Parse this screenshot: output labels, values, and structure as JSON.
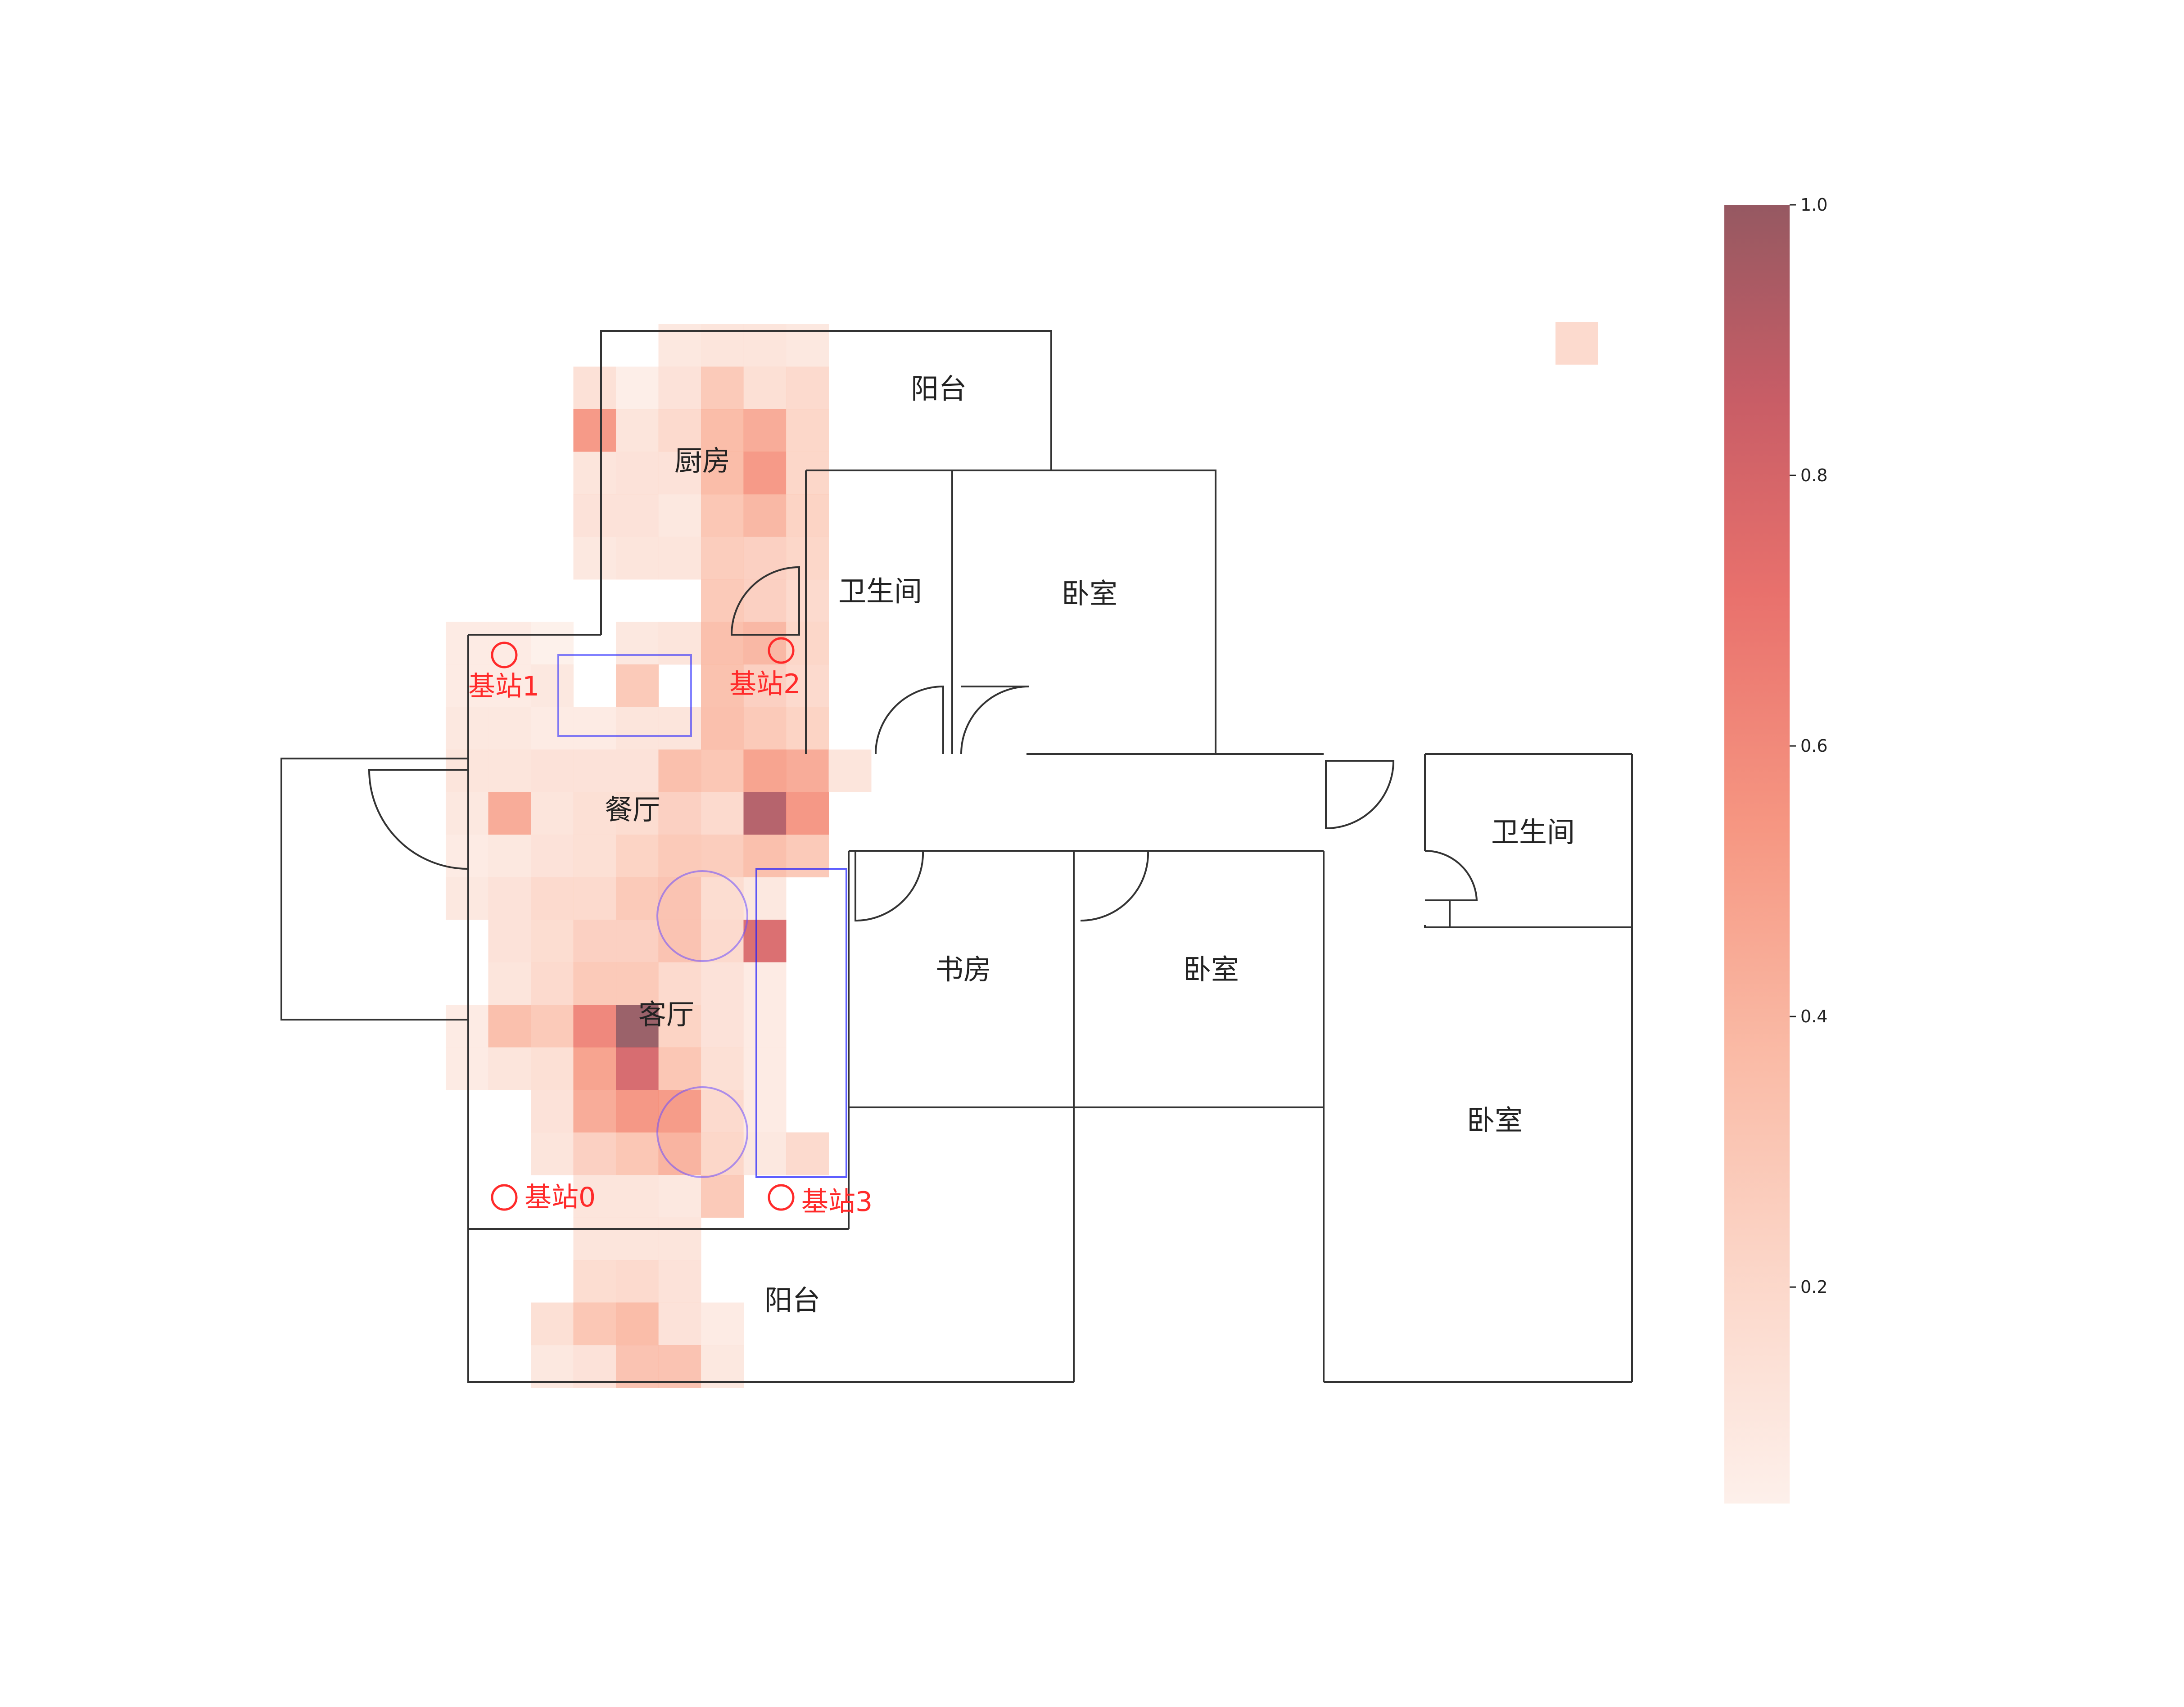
{
  "chart_data": {
    "type": "heatmap",
    "title": "",
    "value_range": [
      0.04,
      1.0
    ],
    "colormap": [
      "#fdeee8",
      "#fbd3c4",
      "#f9b29b",
      "#f58b74",
      "#e6615c",
      "#c24b55",
      "#8a4650"
    ],
    "colormap_stops": [
      0.0,
      0.17,
      0.35,
      0.52,
      0.7,
      0.85,
      1.0
    ],
    "colorbar": {
      "ticks": [
        0.2,
        0.4,
        0.6,
        0.8,
        1.0
      ],
      "tick_labels": [
        "0.2",
        "0.4",
        "0.6",
        "0.8",
        "1.0"
      ]
    },
    "rooms": [
      {
        "id": "balcony-top",
        "label": "阳台"
      },
      {
        "id": "kitchen",
        "label": "厨房"
      },
      {
        "id": "bathroom-1",
        "label": "卫生间"
      },
      {
        "id": "bedroom-1",
        "label": "卧室"
      },
      {
        "id": "dining",
        "label": "餐厅"
      },
      {
        "id": "bathroom-2",
        "label": "卫生间"
      },
      {
        "id": "study",
        "label": "书房"
      },
      {
        "id": "bedroom-2",
        "label": "卧室"
      },
      {
        "id": "living",
        "label": "客厅"
      },
      {
        "id": "bedroom-3",
        "label": "卧室"
      },
      {
        "id": "balcony-bottom",
        "label": "阳台"
      }
    ],
    "stations": [
      {
        "id": 0,
        "label": "基站0"
      },
      {
        "id": 1,
        "label": "基站1"
      },
      {
        "id": 2,
        "label": "基站2"
      },
      {
        "id": 3,
        "label": "基站3"
      }
    ],
    "cells": [
      {
        "col": 5,
        "row": 0,
        "v": 0.1
      },
      {
        "col": 6,
        "row": 0,
        "v": 0.12
      },
      {
        "col": 7,
        "row": 0,
        "v": 0.12
      },
      {
        "col": 8,
        "row": 0,
        "v": 0.1
      },
      {
        "col": 3,
        "row": 1,
        "v": 0.15
      },
      {
        "col": 4,
        "row": 1,
        "v": 0.06
      },
      {
        "col": 5,
        "row": 1,
        "v": 0.14
      },
      {
        "col": 6,
        "row": 1,
        "v": 0.3
      },
      {
        "col": 7,
        "row": 1,
        "v": 0.16
      },
      {
        "col": 8,
        "row": 1,
        "v": 0.2
      },
      {
        "col": 3,
        "row": 2,
        "v": 0.55
      },
      {
        "col": 4,
        "row": 2,
        "v": 0.12
      },
      {
        "col": 5,
        "row": 2,
        "v": 0.2
      },
      {
        "col": 6,
        "row": 2,
        "v": 0.38
      },
      {
        "col": 7,
        "row": 2,
        "v": 0.46
      },
      {
        "col": 8,
        "row": 2,
        "v": 0.22
      },
      {
        "col": 3,
        "row": 3,
        "v": 0.12
      },
      {
        "col": 4,
        "row": 3,
        "v": 0.14
      },
      {
        "col": 5,
        "row": 3,
        "v": 0.14
      },
      {
        "col": 6,
        "row": 3,
        "v": 0.38
      },
      {
        "col": 7,
        "row": 3,
        "v": 0.55
      },
      {
        "col": 8,
        "row": 3,
        "v": 0.22
      },
      {
        "col": 3,
        "row": 4,
        "v": 0.14
      },
      {
        "col": 4,
        "row": 4,
        "v": 0.14
      },
      {
        "col": 5,
        "row": 4,
        "v": 0.1
      },
      {
        "col": 6,
        "row": 4,
        "v": 0.32
      },
      {
        "col": 7,
        "row": 4,
        "v": 0.4
      },
      {
        "col": 8,
        "row": 4,
        "v": 0.24
      },
      {
        "col": 3,
        "row": 5,
        "v": 0.1
      },
      {
        "col": 4,
        "row": 5,
        "v": 0.12
      },
      {
        "col": 5,
        "row": 5,
        "v": 0.12
      },
      {
        "col": 6,
        "row": 5,
        "v": 0.28
      },
      {
        "col": 7,
        "row": 5,
        "v": 0.26
      },
      {
        "col": 8,
        "row": 5,
        "v": 0.22
      },
      {
        "col": 6,
        "row": 6,
        "v": 0.3
      },
      {
        "col": 7,
        "row": 6,
        "v": 0.26
      },
      {
        "col": 8,
        "row": 6,
        "v": 0.2
      },
      {
        "col": 0,
        "row": 7,
        "v": 0.08
      },
      {
        "col": 1,
        "row": 7,
        "v": 0.08
      },
      {
        "col": 2,
        "row": 7,
        "v": 0.04
      },
      {
        "col": 4,
        "row": 7,
        "v": 0.1
      },
      {
        "col": 5,
        "row": 7,
        "v": 0.12
      },
      {
        "col": 6,
        "row": 7,
        "v": 0.36
      },
      {
        "col": 7,
        "row": 7,
        "v": 0.4
      },
      {
        "col": 8,
        "row": 7,
        "v": 0.22
      },
      {
        "col": 0,
        "row": 8,
        "v": 0.08
      },
      {
        "col": 1,
        "row": 8,
        "v": 0.08
      },
      {
        "col": 2,
        "row": 8,
        "v": 0.1
      },
      {
        "col": 4,
        "row": 8,
        "v": 0.3
      },
      {
        "col": 6,
        "row": 8,
        "v": 0.35
      },
      {
        "col": 7,
        "row": 8,
        "v": 0.26
      },
      {
        "col": 8,
        "row": 8,
        "v": 0.2
      },
      {
        "col": 0,
        "row": 9,
        "v": 0.1
      },
      {
        "col": 1,
        "row": 9,
        "v": 0.1
      },
      {
        "col": 2,
        "row": 9,
        "v": 0.08
      },
      {
        "col": 3,
        "row": 9,
        "v": 0.08
      },
      {
        "col": 4,
        "row": 9,
        "v": 0.12
      },
      {
        "col": 5,
        "row": 9,
        "v": 0.12
      },
      {
        "col": 6,
        "row": 9,
        "v": 0.36
      },
      {
        "col": 7,
        "row": 9,
        "v": 0.3
      },
      {
        "col": 8,
        "row": 9,
        "v": 0.24
      },
      {
        "col": 0,
        "row": 10,
        "v": 0.12
      },
      {
        "col": 1,
        "row": 10,
        "v": 0.12
      },
      {
        "col": 2,
        "row": 10,
        "v": 0.14
      },
      {
        "col": 3,
        "row": 10,
        "v": 0.14
      },
      {
        "col": 4,
        "row": 10,
        "v": 0.14
      },
      {
        "col": 5,
        "row": 10,
        "v": 0.36
      },
      {
        "col": 6,
        "row": 10,
        "v": 0.32
      },
      {
        "col": 7,
        "row": 10,
        "v": 0.5
      },
      {
        "col": 8,
        "row": 10,
        "v": 0.46
      },
      {
        "col": 9,
        "row": 10,
        "v": 0.12
      },
      {
        "col": 0,
        "row": 11,
        "v": 0.1
      },
      {
        "col": 1,
        "row": 11,
        "v": 0.46
      },
      {
        "col": 2,
        "row": 11,
        "v": 0.12
      },
      {
        "col": 3,
        "row": 11,
        "v": 0.16
      },
      {
        "col": 4,
        "row": 11,
        "v": 0.18
      },
      {
        "col": 5,
        "row": 11,
        "v": 0.26
      },
      {
        "col": 6,
        "row": 11,
        "v": 0.2
      },
      {
        "col": 7,
        "row": 11,
        "v": 0.92
      },
      {
        "col": 8,
        "row": 11,
        "v": 0.56
      },
      {
        "col": 0,
        "row": 12,
        "v": 0.08
      },
      {
        "col": 1,
        "row": 12,
        "v": 0.1
      },
      {
        "col": 2,
        "row": 12,
        "v": 0.14
      },
      {
        "col": 3,
        "row": 12,
        "v": 0.16
      },
      {
        "col": 4,
        "row": 12,
        "v": 0.24
      },
      {
        "col": 5,
        "row": 12,
        "v": 0.3
      },
      {
        "col": 6,
        "row": 12,
        "v": 0.28
      },
      {
        "col": 7,
        "row": 12,
        "v": 0.36
      },
      {
        "col": 8,
        "row": 12,
        "v": 0.3
      },
      {
        "col": 0,
        "row": 13,
        "v": 0.1
      },
      {
        "col": 1,
        "row": 13,
        "v": 0.14
      },
      {
        "col": 2,
        "row": 13,
        "v": 0.2
      },
      {
        "col": 3,
        "row": 13,
        "v": 0.2
      },
      {
        "col": 4,
        "row": 13,
        "v": 0.3
      },
      {
        "col": 5,
        "row": 13,
        "v": 0.34
      },
      {
        "col": 6,
        "row": 13,
        "v": 0.18
      },
      {
        "col": 7,
        "row": 13,
        "v": 0.1
      },
      {
        "col": 1,
        "row": 14,
        "v": 0.14
      },
      {
        "col": 2,
        "row": 14,
        "v": 0.18
      },
      {
        "col": 3,
        "row": 14,
        "v": 0.26
      },
      {
        "col": 4,
        "row": 14,
        "v": 0.26
      },
      {
        "col": 5,
        "row": 14,
        "v": 0.34
      },
      {
        "col": 6,
        "row": 14,
        "v": 0.2
      },
      {
        "col": 7,
        "row": 14,
        "v": 0.78
      },
      {
        "col": 1,
        "row": 15,
        "v": 0.12
      },
      {
        "col": 2,
        "row": 15,
        "v": 0.2
      },
      {
        "col": 3,
        "row": 15,
        "v": 0.3
      },
      {
        "col": 4,
        "row": 15,
        "v": 0.3
      },
      {
        "col": 5,
        "row": 15,
        "v": 0.2
      },
      {
        "col": 6,
        "row": 15,
        "v": 0.14
      },
      {
        "col": 7,
        "row": 15,
        "v": 0.08
      },
      {
        "col": 0,
        "row": 16,
        "v": 0.08
      },
      {
        "col": 1,
        "row": 16,
        "v": 0.36
      },
      {
        "col": 2,
        "row": 16,
        "v": 0.3
      },
      {
        "col": 3,
        "row": 16,
        "v": 0.64
      },
      {
        "col": 4,
        "row": 16,
        "v": 1.0
      },
      {
        "col": 5,
        "row": 16,
        "v": 0.24
      },
      {
        "col": 6,
        "row": 16,
        "v": 0.14
      },
      {
        "col": 7,
        "row": 16,
        "v": 0.08
      },
      {
        "col": 0,
        "row": 17,
        "v": 0.08
      },
      {
        "col": 1,
        "row": 17,
        "v": 0.12
      },
      {
        "col": 2,
        "row": 17,
        "v": 0.16
      },
      {
        "col": 3,
        "row": 17,
        "v": 0.5
      },
      {
        "col": 4,
        "row": 17,
        "v": 0.8
      },
      {
        "col": 5,
        "row": 17,
        "v": 0.32
      },
      {
        "col": 6,
        "row": 17,
        "v": 0.16
      },
      {
        "col": 7,
        "row": 17,
        "v": 0.08
      },
      {
        "col": 2,
        "row": 18,
        "v": 0.14
      },
      {
        "col": 3,
        "row": 18,
        "v": 0.46
      },
      {
        "col": 4,
        "row": 18,
        "v": 0.56
      },
      {
        "col": 5,
        "row": 18,
        "v": 0.54
      },
      {
        "col": 6,
        "row": 18,
        "v": 0.2
      },
      {
        "col": 7,
        "row": 18,
        "v": 0.08
      },
      {
        "col": 2,
        "row": 19,
        "v": 0.12
      },
      {
        "col": 3,
        "row": 19,
        "v": 0.26
      },
      {
        "col": 4,
        "row": 19,
        "v": 0.32
      },
      {
        "col": 5,
        "row": 19,
        "v": 0.42
      },
      {
        "col": 6,
        "row": 19,
        "v": 0.22
      },
      {
        "col": 7,
        "row": 19,
        "v": 0.1
      },
      {
        "col": 8,
        "row": 19,
        "v": 0.2
      },
      {
        "col": 3,
        "row": 20,
        "v": 0.12
      },
      {
        "col": 4,
        "row": 20,
        "v": 0.12
      },
      {
        "col": 5,
        "row": 20,
        "v": 0.1
      },
      {
        "col": 6,
        "row": 20,
        "v": 0.3
      },
      {
        "col": 3,
        "row": 21,
        "v": 0.12
      },
      {
        "col": 4,
        "row": 21,
        "v": 0.12
      },
      {
        "col": 5,
        "row": 21,
        "v": 0.12
      },
      {
        "col": 3,
        "row": 22,
        "v": 0.18
      },
      {
        "col": 4,
        "row": 22,
        "v": 0.2
      },
      {
        "col": 5,
        "row": 22,
        "v": 0.14
      },
      {
        "col": 2,
        "row": 23,
        "v": 0.16
      },
      {
        "col": 3,
        "row": 23,
        "v": 0.32
      },
      {
        "col": 4,
        "row": 23,
        "v": 0.38
      },
      {
        "col": 5,
        "row": 23,
        "v": 0.14
      },
      {
        "col": 6,
        "row": 23,
        "v": 0.08
      },
      {
        "col": 2,
        "row": 24,
        "v": 0.1
      },
      {
        "col": 3,
        "row": 24,
        "v": 0.14
      },
      {
        "col": 4,
        "row": 24,
        "v": 0.34
      },
      {
        "col": 5,
        "row": 24,
        "v": 0.34
      },
      {
        "col": 6,
        "row": 24,
        "v": 0.1
      },
      {
        "col": 26,
        "row": 0,
        "v": 0.2
      }
    ]
  }
}
